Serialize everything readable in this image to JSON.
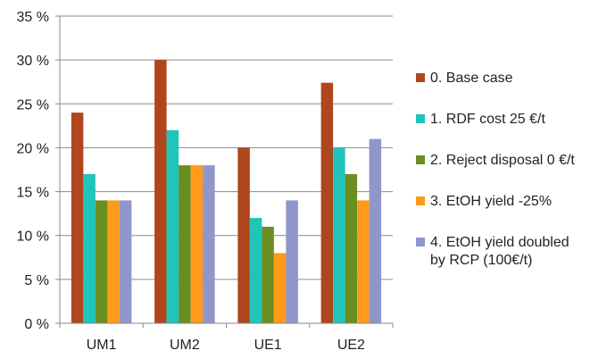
{
  "chart_data": {
    "type": "bar",
    "categories": [
      "UM1",
      "UM2",
      "UE1",
      "UE2"
    ],
    "series": [
      {
        "name": "0. Base case",
        "color": "#b0461d",
        "values": [
          24,
          30,
          20,
          27.4
        ]
      },
      {
        "name": "1. RDF cost 25 €/t",
        "color": "#1fc4bb",
        "values": [
          17,
          22,
          12,
          20
        ]
      },
      {
        "name": "2. Reject disposal 0 €/t",
        "color": "#6b8e23",
        "values": [
          14,
          18,
          11,
          17
        ]
      },
      {
        "name": "3. EtOH yield -25%",
        "color": "#ff9a1a",
        "values": [
          14,
          18,
          8,
          14
        ]
      },
      {
        "name": "4. EtOH yield doubled\nby RCP (100€/t)",
        "color": "#8f96c9",
        "values": [
          14,
          18,
          14,
          21
        ]
      }
    ],
    "y_ticks": [
      "0 %",
      "5 %",
      "10 %",
      "15 %",
      "20 %",
      "25 %",
      "30 %",
      "35 %"
    ],
    "ylim": [
      0,
      35
    ],
    "grid": true,
    "legend_position": "right",
    "title": "",
    "xlabel": "",
    "ylabel": ""
  }
}
